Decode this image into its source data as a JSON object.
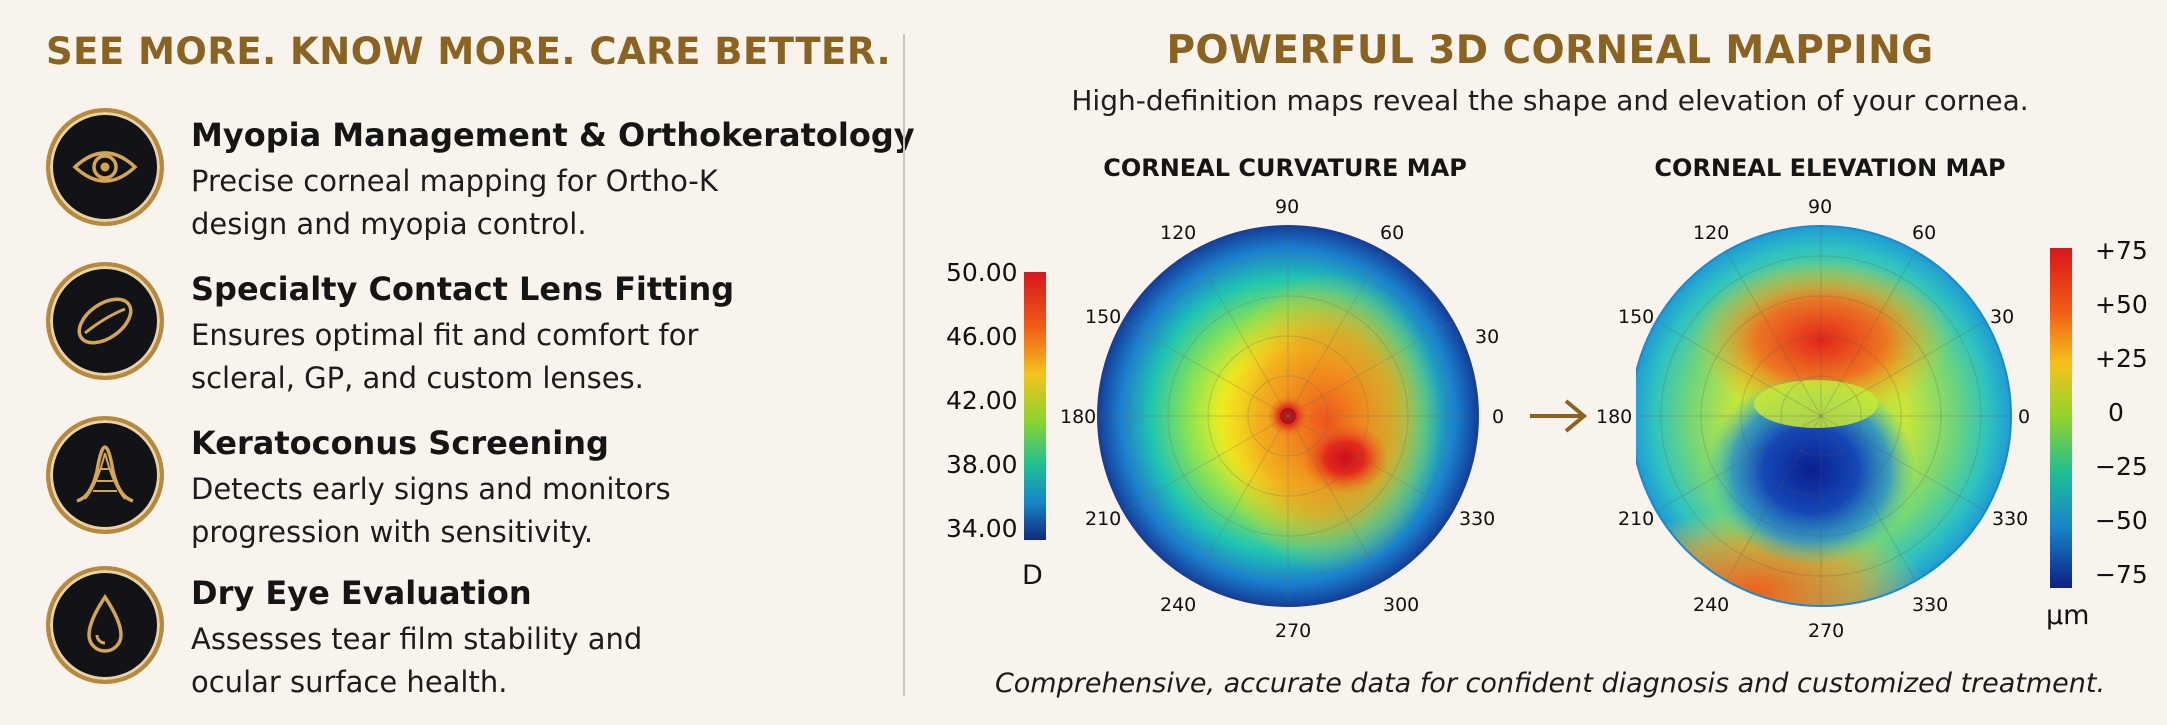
{
  "left": {
    "headline": "SEE MORE. KNOW MORE. CARE BETTER.",
    "features": [
      {
        "title": "Myopia Management & Orthokeratology",
        "desc": "Precise corneal mapping for Ortho-K design and myopia control.",
        "icon": "eye-icon"
      },
      {
        "title": "Specialty Contact Lens Fitting",
        "desc": "Ensures optimal fit and comfort for scleral, GP, and custom lenses.",
        "icon": "contact-lens-icon"
      },
      {
        "title": "Keratoconus Screening",
        "desc": "Detects early signs and monitors progression with sensitivity.",
        "icon": "cornea-cone-icon"
      },
      {
        "title": "Dry Eye Evaluation",
        "desc": "Assesses tear film stability and ocular surface health.",
        "icon": "tear-drop-icon"
      }
    ]
  },
  "right": {
    "title": "POWERFUL 3D CORNEAL MAPPING",
    "subtitle": "High-definition maps reveal the shape and elevation of your cornea.",
    "footer": "Comprehensive, accurate data for confident diagnosis and customized treatment.",
    "curvature": {
      "title": "CORNEAL CURVATURE MAP",
      "scale": [
        "50.00",
        "46.00",
        "42.00",
        "38.00",
        "34.00"
      ],
      "unit": "D",
      "angles": [
        "90",
        "60",
        "30",
        "0",
        "330",
        "300",
        "270",
        "240",
        "210",
        "180",
        "150",
        "120"
      ]
    },
    "elevation": {
      "title": "CORNEAL ELEVATION MAP",
      "scale": [
        "+75",
        "+50",
        "+25",
        "0",
        "−25",
        "−50",
        "−75"
      ],
      "unit": "µm",
      "angles": [
        "90",
        "60",
        "30",
        "0",
        "330",
        "270",
        "240",
        "210",
        "180",
        "150",
        "120"
      ]
    }
  },
  "colors": {
    "gold": "#8a6320",
    "badge_bg": "#111316",
    "badge_ring": "#b8893a"
  }
}
